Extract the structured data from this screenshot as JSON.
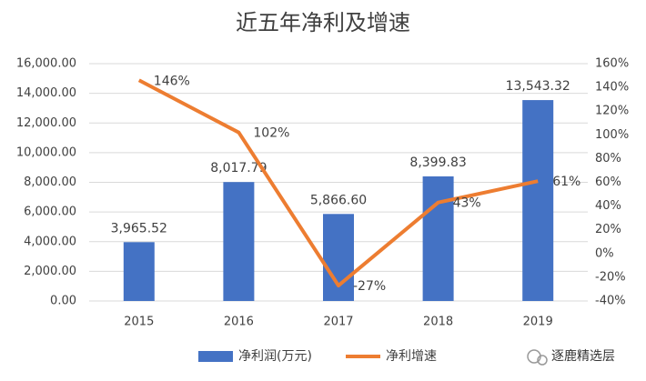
{
  "chart_data": {
    "type": "bar",
    "title": "近五年净利及增速",
    "categories": [
      "2015",
      "2016",
      "2017",
      "2018",
      "2019"
    ],
    "series": [
      {
        "name": "净利润(万元)",
        "color": "#4472c4",
        "values": [
          3965.52,
          8017.79,
          5866.6,
          8399.83,
          13543.32
        ],
        "value_labels": [
          "3,965.52",
          "8,017.79",
          "5,866.60",
          "8,399.83",
          "13,543.32"
        ]
      },
      {
        "name": "净利增速",
        "type": "line",
        "axis": "y2",
        "color": "#ed7d31",
        "values": [
          146,
          102,
          -27,
          43,
          61
        ],
        "value_labels": [
          "146%",
          "102%",
          "-27%",
          "43%",
          "61%"
        ]
      }
    ],
    "ylim": [
      0,
      16000
    ],
    "yticks": [
      {
        "value": 0,
        "label": "0.00"
      },
      {
        "value": 2000,
        "label": "2,000.00"
      },
      {
        "value": 4000,
        "label": "4,000.00"
      },
      {
        "value": 6000,
        "label": "6,000.00"
      },
      {
        "value": 8000,
        "label": "8,000.00"
      },
      {
        "value": 10000,
        "label": "10,000.00"
      },
      {
        "value": 12000,
        "label": "12,000.00"
      },
      {
        "value": 14000,
        "label": "14,000.00"
      },
      {
        "value": 16000,
        "label": "16,000.00"
      }
    ],
    "y2lim": [
      -40,
      160
    ],
    "y2ticks": [
      {
        "value": -40,
        "label": "-40%"
      },
      {
        "value": -20,
        "label": "-20%"
      },
      {
        "value": 0,
        "label": "0%"
      },
      {
        "value": 20,
        "label": "20%"
      },
      {
        "value": 40,
        "label": "40%"
      },
      {
        "value": 60,
        "label": "60%"
      },
      {
        "value": 80,
        "label": "80%"
      },
      {
        "value": 100,
        "label": "100%"
      },
      {
        "value": 120,
        "label": "120%"
      },
      {
        "value": 140,
        "label": "140%"
      },
      {
        "value": 160,
        "label": "160%"
      }
    ],
    "grid": true,
    "legend": "bottom",
    "watermark": "逐鹿精选层"
  }
}
